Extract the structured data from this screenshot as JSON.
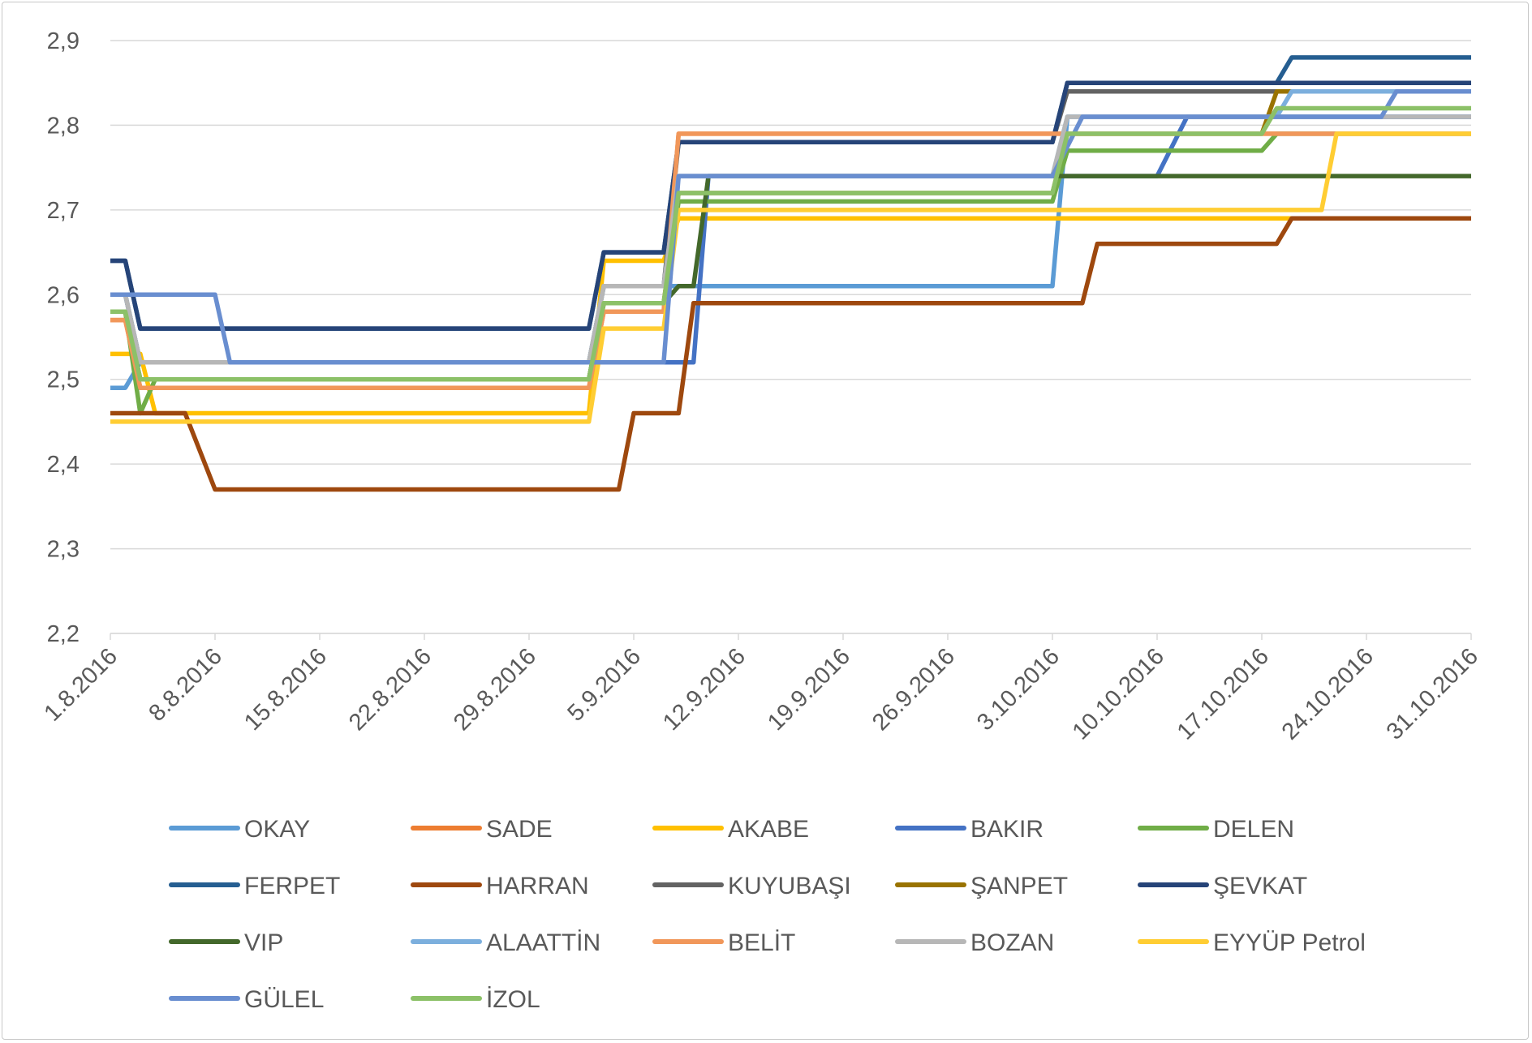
{
  "chart_data": {
    "type": "line",
    "title": "",
    "xlabel": "",
    "ylabel": "",
    "ylim": [
      2.2,
      2.9
    ],
    "y_ticks": [
      "2,2",
      "2,3",
      "2,4",
      "2,5",
      "2,6",
      "2,7",
      "2,8",
      "2,9"
    ],
    "x_range": [
      0,
      91
    ],
    "x_ticks": [
      {
        "label": "1.8.2016",
        "day": 0
      },
      {
        "label": "8.8.2016",
        "day": 7
      },
      {
        "label": "15.8.2016",
        "day": 14
      },
      {
        "label": "22.8.2016",
        "day": 21
      },
      {
        "label": "29.8.2016",
        "day": 28
      },
      {
        "label": "5.9.2016",
        "day": 35
      },
      {
        "label": "12.9.2016",
        "day": 42
      },
      {
        "label": "19.9.2016",
        "day": 49
      },
      {
        "label": "26.9.2016",
        "day": 56
      },
      {
        "label": "3.10.2016",
        "day": 63
      },
      {
        "label": "10.10.2016",
        "day": 70
      },
      {
        "label": "17.10.2016",
        "day": 77
      },
      {
        "label": "24.10.2016",
        "day": 84
      },
      {
        "label": "31.10.2016",
        "day": 91
      }
    ],
    "grid": true,
    "legend_position": "bottom",
    "series": [
      {
        "name": "OKAY",
        "color": "#5b9bd5",
        "points": [
          [
            0,
            2.49
          ],
          [
            1,
            2.49
          ],
          [
            2,
            2.52
          ],
          [
            32,
            2.52
          ],
          [
            33,
            2.61
          ],
          [
            63,
            2.61
          ],
          [
            64,
            2.81
          ],
          [
            91,
            2.81
          ]
        ]
      },
      {
        "name": "SADE",
        "color": "#ed7d31",
        "points": [
          [
            0,
            2.57
          ],
          [
            1,
            2.57
          ],
          [
            2,
            2.49
          ],
          [
            32,
            2.49
          ],
          [
            33,
            2.58
          ],
          [
            37,
            2.58
          ],
          [
            38,
            2.79
          ],
          [
            91,
            2.79
          ]
        ]
      },
      {
        "name": "AKABE",
        "color": "#ffc000",
        "points": [
          [
            0,
            2.53
          ],
          [
            2,
            2.53
          ],
          [
            3,
            2.46
          ],
          [
            32,
            2.46
          ],
          [
            33,
            2.64
          ],
          [
            37,
            2.64
          ],
          [
            38,
            2.69
          ],
          [
            91,
            2.69
          ]
        ]
      },
      {
        "name": "BAKIR",
        "color": "#4472c4",
        "points": [
          [
            0,
            2.6
          ],
          [
            1,
            2.6
          ],
          [
            2,
            2.52
          ],
          [
            39,
            2.52
          ],
          [
            40,
            2.74
          ],
          [
            70,
            2.74
          ],
          [
            72,
            2.81
          ],
          [
            91,
            2.81
          ]
        ]
      },
      {
        "name": "DELEN",
        "color": "#70ad47",
        "points": [
          [
            0,
            2.58
          ],
          [
            1,
            2.58
          ],
          [
            2,
            2.46
          ],
          [
            3,
            2.5
          ],
          [
            32,
            2.5
          ],
          [
            33,
            2.59
          ],
          [
            37,
            2.59
          ],
          [
            38,
            2.71
          ],
          [
            63,
            2.71
          ],
          [
            64,
            2.77
          ],
          [
            77,
            2.77
          ],
          [
            78,
            2.79
          ],
          [
            91,
            2.79
          ]
        ]
      },
      {
        "name": "FERPET",
        "color": "#255e91",
        "points": [
          [
            0,
            2.64
          ],
          [
            1,
            2.64
          ],
          [
            2,
            2.56
          ],
          [
            32,
            2.56
          ],
          [
            33,
            2.65
          ],
          [
            37,
            2.65
          ],
          [
            38,
            2.78
          ],
          [
            63,
            2.78
          ],
          [
            64,
            2.85
          ],
          [
            78,
            2.85
          ],
          [
            79,
            2.88
          ],
          [
            91,
            2.88
          ]
        ]
      },
      {
        "name": "HARRAN",
        "color": "#9e480e",
        "points": [
          [
            0,
            2.46
          ],
          [
            5,
            2.46
          ],
          [
            7,
            2.37
          ],
          [
            34,
            2.37
          ],
          [
            35,
            2.46
          ],
          [
            38,
            2.46
          ],
          [
            39,
            2.59
          ],
          [
            65,
            2.59
          ],
          [
            66,
            2.66
          ],
          [
            78,
            2.66
          ],
          [
            79,
            2.69
          ],
          [
            91,
            2.69
          ]
        ]
      },
      {
        "name": "KUYUBAŞI",
        "color": "#636363",
        "points": [
          [
            0,
            2.6
          ],
          [
            1,
            2.6
          ],
          [
            2,
            2.52
          ],
          [
            32,
            2.52
          ],
          [
            33,
            2.61
          ],
          [
            37,
            2.61
          ],
          [
            38,
            2.78
          ],
          [
            63,
            2.78
          ],
          [
            64,
            2.84
          ],
          [
            91,
            2.84
          ]
        ]
      },
      {
        "name": "ŞANPET",
        "color": "#997300",
        "points": [
          [
            0,
            2.58
          ],
          [
            1,
            2.58
          ],
          [
            2,
            2.5
          ],
          [
            32,
            2.5
          ],
          [
            33,
            2.59
          ],
          [
            37,
            2.59
          ],
          [
            38,
            2.72
          ],
          [
            63,
            2.72
          ],
          [
            64,
            2.79
          ],
          [
            77,
            2.79
          ],
          [
            78,
            2.84
          ],
          [
            91,
            2.84
          ]
        ]
      },
      {
        "name": "ŞEVKAT",
        "color": "#264478",
        "points": [
          [
            0,
            2.64
          ],
          [
            1,
            2.64
          ],
          [
            2,
            2.56
          ],
          [
            32,
            2.56
          ],
          [
            33,
            2.65
          ],
          [
            37,
            2.65
          ],
          [
            38,
            2.78
          ],
          [
            63,
            2.78
          ],
          [
            64,
            2.85
          ],
          [
            91,
            2.85
          ]
        ]
      },
      {
        "name": "VIP",
        "color": "#43682b",
        "points": [
          [
            0,
            2.58
          ],
          [
            1,
            2.58
          ],
          [
            2,
            2.5
          ],
          [
            32,
            2.5
          ],
          [
            33,
            2.59
          ],
          [
            37,
            2.59
          ],
          [
            38,
            2.61
          ],
          [
            39,
            2.61
          ],
          [
            40,
            2.74
          ],
          [
            91,
            2.74
          ]
        ]
      },
      {
        "name": "ALAATTİN",
        "color": "#7cafdd",
        "points": [
          [
            0,
            2.6
          ],
          [
            1,
            2.6
          ],
          [
            2,
            2.52
          ],
          [
            32,
            2.52
          ],
          [
            33,
            2.61
          ],
          [
            37,
            2.61
          ],
          [
            38,
            2.74
          ],
          [
            63,
            2.74
          ],
          [
            64,
            2.81
          ],
          [
            78,
            2.81
          ],
          [
            79,
            2.84
          ],
          [
            91,
            2.84
          ]
        ]
      },
      {
        "name": "BELİT",
        "color": "#f1975a",
        "points": [
          [
            0,
            2.57
          ],
          [
            1,
            2.57
          ],
          [
            2,
            2.49
          ],
          [
            32,
            2.49
          ],
          [
            33,
            2.58
          ],
          [
            37,
            2.58
          ],
          [
            38,
            2.79
          ],
          [
            63,
            2.79
          ],
          [
            64,
            2.79
          ],
          [
            91,
            2.79
          ]
        ]
      },
      {
        "name": "BOZAN",
        "color": "#b7b7b7",
        "points": [
          [
            0,
            2.6
          ],
          [
            1,
            2.6
          ],
          [
            2,
            2.52
          ],
          [
            32,
            2.52
          ],
          [
            33,
            2.61
          ],
          [
            37,
            2.61
          ],
          [
            38,
            2.74
          ],
          [
            63,
            2.74
          ],
          [
            64,
            2.81
          ],
          [
            91,
            2.81
          ]
        ]
      },
      {
        "name": "EYYÜP Petrol",
        "color": "#ffcd33",
        "points": [
          [
            0,
            2.45
          ],
          [
            32,
            2.45
          ],
          [
            33,
            2.56
          ],
          [
            37,
            2.56
          ],
          [
            38,
            2.7
          ],
          [
            81,
            2.7
          ],
          [
            82,
            2.79
          ],
          [
            91,
            2.79
          ]
        ]
      },
      {
        "name": "GÜLEL",
        "color": "#698ed0",
        "points": [
          [
            0,
            2.6
          ],
          [
            7,
            2.6
          ],
          [
            8,
            2.52
          ],
          [
            37,
            2.52
          ],
          [
            38,
            2.74
          ],
          [
            63,
            2.74
          ],
          [
            65,
            2.81
          ],
          [
            85,
            2.81
          ],
          [
            86,
            2.84
          ],
          [
            91,
            2.84
          ]
        ]
      },
      {
        "name": "İZOL",
        "color": "#8cc168",
        "points": [
          [
            0,
            2.58
          ],
          [
            1,
            2.58
          ],
          [
            2,
            2.5
          ],
          [
            32,
            2.5
          ],
          [
            33,
            2.59
          ],
          [
            37,
            2.59
          ],
          [
            38,
            2.72
          ],
          [
            63,
            2.72
          ],
          [
            64,
            2.79
          ],
          [
            77,
            2.79
          ],
          [
            78,
            2.82
          ],
          [
            91,
            2.82
          ]
        ]
      }
    ]
  }
}
